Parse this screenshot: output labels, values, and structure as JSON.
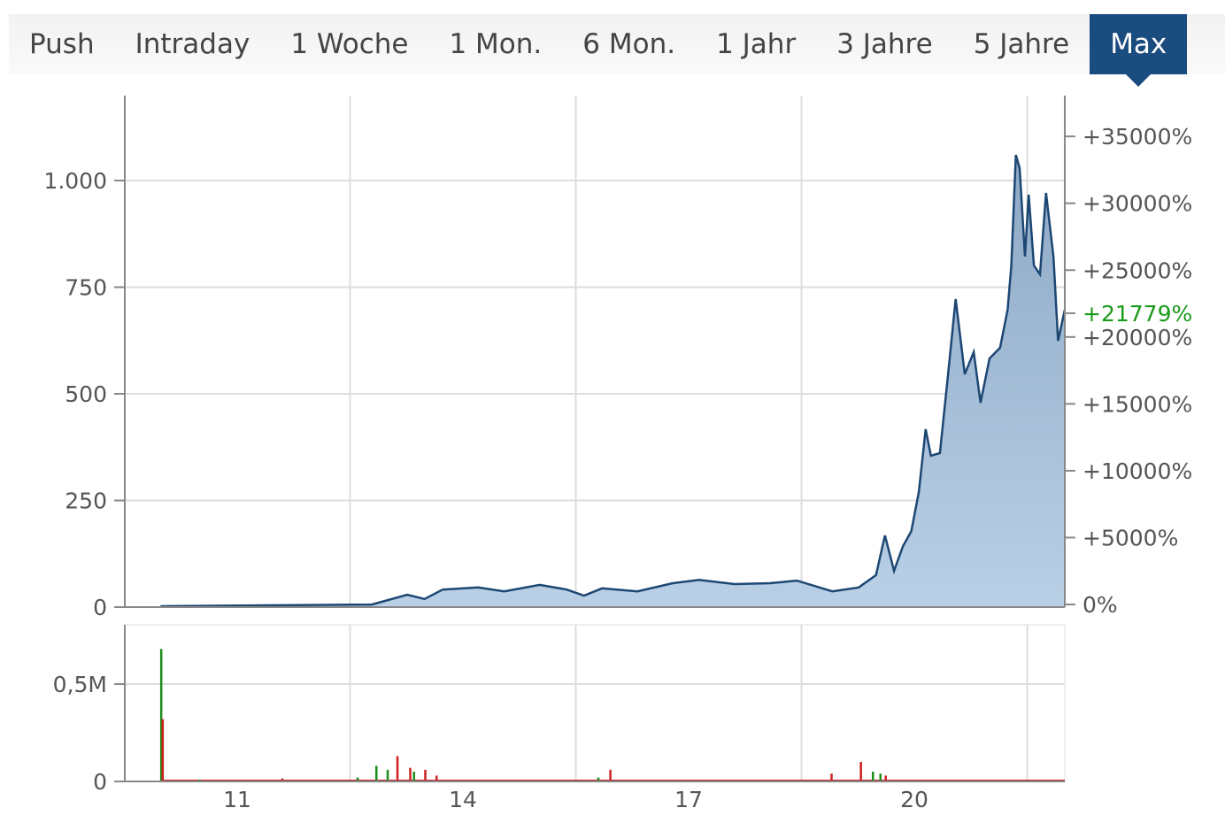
{
  "tabs": [
    {
      "label": "Push",
      "active": false
    },
    {
      "label": "Intraday",
      "active": false
    },
    {
      "label": "1 Woche",
      "active": false
    },
    {
      "label": "1 Mon.",
      "active": false
    },
    {
      "label": "6 Mon.",
      "active": false
    },
    {
      "label": "1 Jahr",
      "active": false
    },
    {
      "label": "3 Jahre",
      "active": false
    },
    {
      "label": "5 Jahre",
      "active": false
    },
    {
      "label": "Max",
      "active": true
    }
  ],
  "colors": {
    "active_tab": "#1b4c80",
    "line": "#1d4773",
    "area": "#a6bfd8",
    "up": "#1a8c1a",
    "down": "#cc1f1f",
    "current": "#1a9a1a"
  },
  "chart_data": [
    {
      "type": "area",
      "y_ticks": [
        {
          "v": 0,
          "label": "0"
        },
        {
          "v": 250,
          "label": "250"
        },
        {
          "v": 500,
          "label": "500"
        },
        {
          "v": 750,
          "label": "750"
        },
        {
          "v": 1000,
          "label": "1.000"
        }
      ],
      "y2_ticks": [
        {
          "v": 0,
          "label": "0%"
        },
        {
          "v": 5000,
          "label": "+5000%"
        },
        {
          "v": 10000,
          "label": "+10000%"
        },
        {
          "v": 15000,
          "label": "+15000%"
        },
        {
          "v": 20000,
          "label": "+20000%"
        },
        {
          "v": 25000,
          "label": "+25000%"
        },
        {
          "v": 30000,
          "label": "+30000%"
        },
        {
          "v": 35000,
          "label": "+35000%"
        }
      ],
      "current_change": {
        "v": 21779,
        "label": "+21779%"
      },
      "x_ticks": [
        {
          "v": 2011,
          "label": "11"
        },
        {
          "v": 2014,
          "label": "14"
        },
        {
          "v": 2017,
          "label": "17"
        },
        {
          "v": 2020,
          "label": "20"
        }
      ],
      "grid": true,
      "x": [
        2009.98,
        2012.79,
        2013.26,
        2013.49,
        2013.73,
        2014.2,
        2014.55,
        2015.02,
        2015.38,
        2015.61,
        2015.85,
        2016.32,
        2016.79,
        2017.14,
        2017.61,
        2018.08,
        2018.44,
        2018.91,
        2019.26,
        2019.49,
        2019.61,
        2019.73,
        2019.85,
        2019.96,
        2020.06,
        2020.15,
        2020.22,
        2020.34,
        2020.44,
        2020.55,
        2020.67,
        2020.79,
        2020.88,
        2021.0,
        2021.14,
        2021.24,
        2021.29,
        2021.35,
        2021.4,
        2021.47,
        2021.52,
        2021.59,
        2021.67,
        2021.75,
        2021.85,
        2021.91,
        2022.0
      ],
      "y": [
        2,
        6,
        29,
        19,
        41,
        46,
        37,
        52,
        41,
        27,
        44,
        37,
        56,
        64,
        54,
        56,
        62,
        37,
        46,
        75,
        168,
        85,
        143,
        178,
        270,
        417,
        355,
        361,
        531,
        722,
        546,
        598,
        479,
        583,
        608,
        697,
        801,
        1060,
        1029,
        822,
        967,
        801,
        780,
        971,
        822,
        624,
        697
      ]
    },
    {
      "type": "bar",
      "y_ticks": [
        {
          "v": 0,
          "label": "0"
        },
        {
          "v": 0.5,
          "label": "0,5M"
        }
      ],
      "bars": [
        {
          "x": 2009.99,
          "v": 0.68,
          "dir": "up"
        },
        {
          "x": 2010.01,
          "v": 0.32,
          "dir": "down"
        },
        {
          "x": 2010.5,
          "v": 0.01,
          "dir": "up"
        },
        {
          "x": 2011.6,
          "v": 0.015,
          "dir": "down"
        },
        {
          "x": 2012.6,
          "v": 0.02,
          "dir": "up"
        },
        {
          "x": 2012.85,
          "v": 0.08,
          "dir": "up"
        },
        {
          "x": 2013.0,
          "v": 0.06,
          "dir": "up"
        },
        {
          "x": 2013.13,
          "v": 0.13,
          "dir": "down"
        },
        {
          "x": 2013.3,
          "v": 0.07,
          "dir": "down"
        },
        {
          "x": 2013.35,
          "v": 0.05,
          "dir": "up"
        },
        {
          "x": 2013.5,
          "v": 0.06,
          "dir": "down"
        },
        {
          "x": 2013.65,
          "v": 0.03,
          "dir": "down"
        },
        {
          "x": 2015.96,
          "v": 0.06,
          "dir": "down"
        },
        {
          "x": 2015.8,
          "v": 0.02,
          "dir": "up"
        },
        {
          "x": 2018.9,
          "v": 0.04,
          "dir": "down"
        },
        {
          "x": 2019.29,
          "v": 0.1,
          "dir": "down"
        },
        {
          "x": 2019.45,
          "v": 0.05,
          "dir": "up"
        },
        {
          "x": 2019.55,
          "v": 0.04,
          "dir": "up"
        },
        {
          "x": 2019.62,
          "v": 0.03,
          "dir": "down"
        }
      ]
    }
  ]
}
